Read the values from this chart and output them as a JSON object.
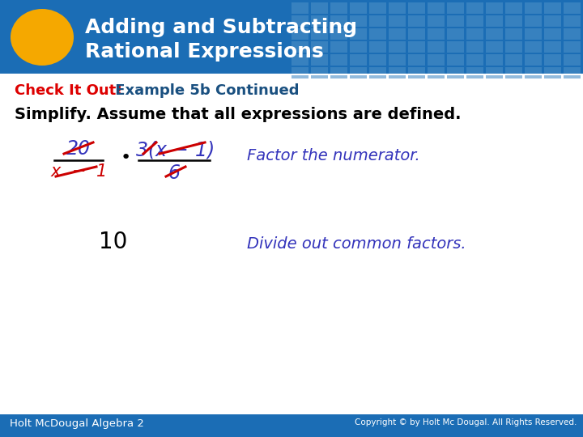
{
  "title_line1": "Adding and Subtracting",
  "title_line2": "Rational Expressions",
  "subtitle_red": "Check It Out!",
  "subtitle_blue": " Example 5b Continued",
  "body_text": "Simplify. Assume that all expressions are defined.",
  "header_bg_color": "#1b6db5",
  "header_tile_color": "#4a8fc7",
  "oval_color": "#f5a800",
  "footer_bg_color": "#1b6db5",
  "footer_left": "Holt McDougal Algebra 2",
  "footer_right": "Copyright © by Holt Mc Dougal. All Rights Reserved.",
  "factor_comment": "Factor the numerator.",
  "divide_comment": "Divide out common factors.",
  "blue_color": "#3333bb",
  "red_color": "#cc0000",
  "dark_blue": "#1a3a8a",
  "check_red": "#dd0000",
  "example_blue": "#1a5080"
}
